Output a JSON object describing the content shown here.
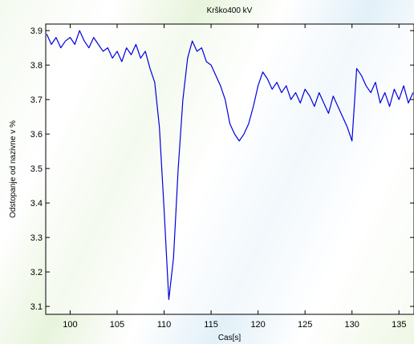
{
  "chart_data": {
    "type": "line",
    "title": "Krško400 kV",
    "x_label": "Cas[s]",
    "y_label": "Odstopanje od nazivne v %",
    "xlim": [
      97.4,
      136.6
    ],
    "ylim": [
      3.077,
      3.919
    ],
    "xticks": [
      100,
      105,
      110,
      115,
      120,
      125,
      130,
      135
    ],
    "yticks": [
      3.1,
      3.2,
      3.3,
      3.4,
      3.5,
      3.6,
      3.7,
      3.8,
      3.9
    ],
    "grid": false,
    "series": [
      {
        "color": "#0000e0",
        "x": [
          97.5,
          98,
          98.5,
          99,
          99.5,
          100,
          100.5,
          101,
          101.5,
          102,
          102.5,
          103,
          103.5,
          104,
          104.5,
          105,
          105.5,
          106,
          106.5,
          107,
          107.5,
          108,
          108.5,
          109,
          109.5,
          110,
          110.5,
          111,
          111.5,
          112,
          112.5,
          113,
          113.5,
          114,
          114.5,
          115,
          115.5,
          116,
          116.5,
          117,
          117.5,
          118,
          118.5,
          119,
          119.5,
          120,
          120.5,
          121,
          121.5,
          122,
          122.5,
          123,
          123.5,
          124,
          124.5,
          125,
          125.5,
          126,
          126.5,
          127,
          127.5,
          128,
          128.5,
          129,
          129.5,
          130,
          130.5,
          131,
          131.5,
          132,
          132.5,
          133,
          133.5,
          134,
          134.5,
          135,
          135.5,
          136,
          136.5
        ],
        "values": [
          3.89,
          3.86,
          3.88,
          3.85,
          3.87,
          3.88,
          3.86,
          3.9,
          3.87,
          3.85,
          3.88,
          3.86,
          3.84,
          3.85,
          3.82,
          3.84,
          3.81,
          3.85,
          3.83,
          3.86,
          3.82,
          3.84,
          3.79,
          3.75,
          3.62,
          3.38,
          3.12,
          3.24,
          3.5,
          3.7,
          3.82,
          3.87,
          3.84,
          3.85,
          3.81,
          3.8,
          3.77,
          3.74,
          3.7,
          3.63,
          3.6,
          3.58,
          3.6,
          3.63,
          3.68,
          3.74,
          3.78,
          3.76,
          3.73,
          3.75,
          3.72,
          3.74,
          3.7,
          3.72,
          3.69,
          3.73,
          3.71,
          3.68,
          3.72,
          3.69,
          3.66,
          3.71,
          3.68,
          3.65,
          3.62,
          3.58,
          3.79,
          3.77,
          3.74,
          3.72,
          3.75,
          3.69,
          3.72,
          3.68,
          3.73,
          3.7,
          3.74,
          3.69,
          3.72
        ]
      }
    ]
  }
}
